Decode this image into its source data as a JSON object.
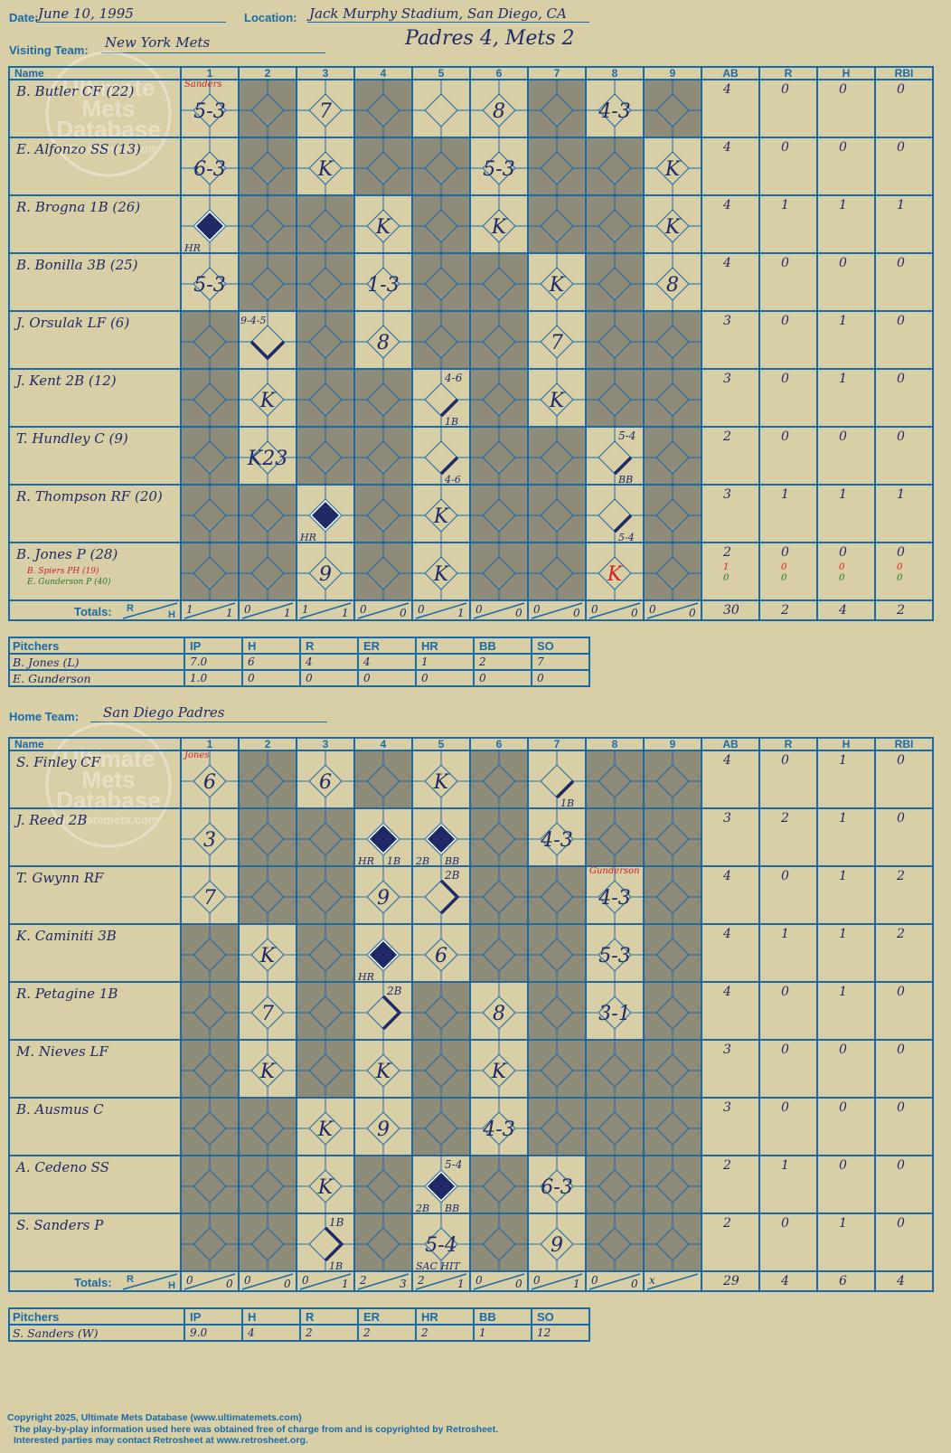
{
  "header": {
    "date_label": "Date:",
    "date": "June 10, 1995",
    "location_label": "Location:",
    "location": "Jack Murphy Stadium, San Diego, CA",
    "result": "Padres 4, Mets 2"
  },
  "labels": {
    "visiting_team": "Visiting Team:",
    "home_team": "Home Team:",
    "name": "Name",
    "totals": "Totals:",
    "r": "R",
    "h": "H",
    "pitchers": "Pitchers"
  },
  "innings": [
    "1",
    "2",
    "3",
    "4",
    "5",
    "6",
    "7",
    "8",
    "9"
  ],
  "stat_cols": [
    "AB",
    "R",
    "H",
    "RBI"
  ],
  "pitch_cols": [
    "IP",
    "H",
    "R",
    "ER",
    "HR",
    "BB",
    "SO"
  ],
  "watermark": {
    "line1": "Ultimate",
    "line2": "Mets",
    "line3": "Database",
    "line4": "ultimatemets.com"
  },
  "colors": {
    "background": "#d9cfa6",
    "grid": "#1a6aa8",
    "shade": "#8e8b79",
    "ink": "#1f2a66",
    "red": "#cc2222",
    "green": "#2a7a2a"
  },
  "visitors": {
    "team": "New York Mets",
    "players": [
      {
        "name": "B. Butler CF (22)",
        "stats": [
          "4",
          "0",
          "0",
          "0"
        ]
      },
      {
        "name": "E. Alfonzo SS (13)",
        "stats": [
          "4",
          "0",
          "0",
          "0"
        ]
      },
      {
        "name": "R. Brogna 1B (26)",
        "stats": [
          "4",
          "1",
          "1",
          "1"
        ]
      },
      {
        "name": "B. Bonilla 3B (25)",
        "stats": [
          "4",
          "0",
          "0",
          "0"
        ]
      },
      {
        "name": "J. Orsulak LF (6)",
        "stats": [
          "3",
          "0",
          "1",
          "0"
        ]
      },
      {
        "name": "J. Kent 2B (12)",
        "stats": [
          "3",
          "0",
          "1",
          "0"
        ]
      },
      {
        "name": "T. Hundley C (9)",
        "stats": [
          "2",
          "0",
          "0",
          "0"
        ]
      },
      {
        "name": "R. Thompson RF (20)",
        "stats": [
          "3",
          "1",
          "1",
          "1"
        ]
      },
      {
        "name": "B. Jones P (28)",
        "stats": [
          "2",
          "0",
          "0",
          "0"
        ],
        "subs": [
          {
            "name": "B. Spiers PH (19)",
            "color": "red",
            "stats": [
              "1",
              "0",
              "0",
              "0"
            ]
          },
          {
            "name": "E. Gunderson P (40)",
            "color": "green",
            "stats": [
              "0",
              "0",
              "0",
              "0"
            ]
          }
        ]
      }
    ],
    "shade": [
      [
        0,
        1,
        0,
        1,
        0,
        0,
        1,
        0,
        1
      ],
      [
        0,
        1,
        0,
        1,
        1,
        0,
        1,
        1,
        0
      ],
      [
        0,
        1,
        1,
        0,
        1,
        0,
        1,
        1,
        0
      ],
      [
        0,
        1,
        1,
        0,
        1,
        1,
        0,
        1,
        0
      ],
      [
        1,
        0,
        1,
        0,
        1,
        1,
        0,
        1,
        1
      ],
      [
        1,
        0,
        1,
        1,
        0,
        1,
        0,
        1,
        1
      ],
      [
        1,
        0,
        1,
        1,
        0,
        1,
        1,
        0,
        1
      ],
      [
        1,
        1,
        0,
        1,
        0,
        1,
        1,
        0,
        1
      ],
      [
        1,
        1,
        0,
        1,
        0,
        1,
        1,
        0,
        1
      ]
    ],
    "plays": [
      {
        "r": 0,
        "i": 0,
        "t": "5-3"
      },
      {
        "r": 0,
        "i": 2,
        "t": "7"
      },
      {
        "r": 0,
        "i": 5,
        "t": "8"
      },
      {
        "r": 0,
        "i": 7,
        "t": "4-3"
      },
      {
        "r": 1,
        "i": 0,
        "t": "6-3"
      },
      {
        "r": 1,
        "i": 2,
        "t": "K"
      },
      {
        "r": 1,
        "i": 5,
        "t": "5-3"
      },
      {
        "r": 1,
        "i": 8,
        "t": "K"
      },
      {
        "r": 2,
        "i": 0,
        "t": "",
        "fill": 1,
        "bl": "HR"
      },
      {
        "r": 2,
        "i": 3,
        "t": "K"
      },
      {
        "r": 2,
        "i": 5,
        "t": "K"
      },
      {
        "r": 2,
        "i": 8,
        "t": "K"
      },
      {
        "r": 3,
        "i": 0,
        "t": "5-3"
      },
      {
        "r": 3,
        "i": 3,
        "t": "1-3"
      },
      {
        "r": 3,
        "i": 6,
        "t": "K"
      },
      {
        "r": 3,
        "i": 8,
        "t": "8"
      },
      {
        "r": 4,
        "i": 1,
        "t": "",
        "tl": "9-4-5",
        "path": "run2"
      },
      {
        "r": 4,
        "i": 3,
        "t": "8"
      },
      {
        "r": 4,
        "i": 6,
        "t": "7"
      },
      {
        "r": 5,
        "i": 1,
        "t": "K"
      },
      {
        "r": 5,
        "i": 4,
        "t": "",
        "tr": "4-6",
        "br": "1B",
        "path": "to1"
      },
      {
        "r": 5,
        "i": 6,
        "t": "K"
      },
      {
        "r": 6,
        "i": 1,
        "t": "K23"
      },
      {
        "r": 6,
        "i": 4,
        "t": "",
        "br": "4-6",
        "path": "to1"
      },
      {
        "r": 6,
        "i": 7,
        "t": "",
        "tr": "5-4",
        "br": "BB",
        "path": "to1"
      },
      {
        "r": 7,
        "i": 2,
        "t": "",
        "fill": 1,
        "bl": "HR"
      },
      {
        "r": 7,
        "i": 4,
        "t": "K"
      },
      {
        "r": 7,
        "i": 7,
        "t": "",
        "br": "5-4",
        "path": "to1"
      },
      {
        "r": 8,
        "i": 2,
        "t": "9"
      },
      {
        "r": 8,
        "i": 4,
        "t": "K"
      },
      {
        "r": 8,
        "i": 7,
        "t": "K",
        "red": 1
      }
    ],
    "notes": [
      {
        "r": 0,
        "i": 0,
        "t": "Sanders"
      }
    ],
    "totals": {
      "innings": [
        [
          "1",
          "1"
        ],
        [
          "0",
          "1"
        ],
        [
          "1",
          "1"
        ],
        [
          "0",
          "0"
        ],
        [
          "0",
          "1"
        ],
        [
          "0",
          "0"
        ],
        [
          "0",
          "0"
        ],
        [
          "0",
          "0"
        ],
        [
          "0",
          "0"
        ]
      ],
      "stats": [
        "30",
        "2",
        "4",
        "2"
      ]
    },
    "pitchers": [
      {
        "name": "B. Jones (L)",
        "stats": [
          "7.0",
          "6",
          "4",
          "4",
          "1",
          "2",
          "7"
        ]
      },
      {
        "name": "E. Gunderson",
        "stats": [
          "1.0",
          "0",
          "0",
          "0",
          "0",
          "0",
          "0"
        ]
      }
    ]
  },
  "home": {
    "team": "San Diego Padres",
    "players": [
      {
        "name": "S. Finley CF",
        "stats": [
          "4",
          "0",
          "1",
          "0"
        ]
      },
      {
        "name": "J. Reed 2B",
        "stats": [
          "3",
          "2",
          "1",
          "0"
        ]
      },
      {
        "name": "T. Gwynn RF",
        "stats": [
          "4",
          "0",
          "1",
          "2"
        ]
      },
      {
        "name": "K. Caminiti 3B",
        "stats": [
          "4",
          "1",
          "1",
          "2"
        ]
      },
      {
        "name": "R. Petagine 1B",
        "stats": [
          "4",
          "0",
          "1",
          "0"
        ]
      },
      {
        "name": "M. Nieves LF",
        "stats": [
          "3",
          "0",
          "0",
          "0"
        ]
      },
      {
        "name": "B. Ausmus C",
        "stats": [
          "3",
          "0",
          "0",
          "0"
        ]
      },
      {
        "name": "A. Cedeno SS",
        "stats": [
          "2",
          "1",
          "0",
          "0"
        ]
      },
      {
        "name": "S. Sanders P",
        "stats": [
          "2",
          "0",
          "1",
          "0"
        ]
      }
    ],
    "shade": [
      [
        0,
        1,
        0,
        1,
        0,
        1,
        0,
        1,
        1
      ],
      [
        0,
        1,
        1,
        0,
        0,
        1,
        0,
        1,
        1
      ],
      [
        0,
        1,
        1,
        0,
        0,
        1,
        1,
        0,
        1
      ],
      [
        1,
        0,
        1,
        0,
        0,
        1,
        1,
        0,
        1
      ],
      [
        1,
        0,
        1,
        0,
        1,
        0,
        1,
        0,
        1
      ],
      [
        1,
        0,
        1,
        0,
        1,
        0,
        1,
        1,
        1
      ],
      [
        1,
        1,
        0,
        0,
        1,
        0,
        1,
        1,
        1
      ],
      [
        1,
        1,
        0,
        1,
        0,
        1,
        0,
        1,
        1
      ],
      [
        1,
        1,
        0,
        1,
        0,
        1,
        0,
        1,
        1
      ]
    ],
    "plays": [
      {
        "r": 0,
        "i": 0,
        "t": "6"
      },
      {
        "r": 0,
        "i": 2,
        "t": "6"
      },
      {
        "r": 0,
        "i": 4,
        "t": "K"
      },
      {
        "r": 0,
        "i": 6,
        "t": "",
        "br": "1B",
        "path": "to1"
      },
      {
        "r": 1,
        "i": 0,
        "t": "3"
      },
      {
        "r": 1,
        "i": 3,
        "t": "",
        "fill": 1,
        "bl": "HR",
        "br": "1B"
      },
      {
        "r": 1,
        "i": 4,
        "t": "",
        "fill": 1,
        "bl": "2B",
        "br": "BB"
      },
      {
        "r": 1,
        "i": 6,
        "t": "4-3"
      },
      {
        "r": 2,
        "i": 0,
        "t": "7"
      },
      {
        "r": 2,
        "i": 3,
        "t": "9"
      },
      {
        "r": 2,
        "i": 4,
        "t": "",
        "tr": "2B",
        "path": "to2"
      },
      {
        "r": 2,
        "i": 7,
        "t": "4-3"
      },
      {
        "r": 3,
        "i": 1,
        "t": "K"
      },
      {
        "r": 3,
        "i": 3,
        "t": "",
        "fill": 1,
        "bl": "HR"
      },
      {
        "r": 3,
        "i": 4,
        "t": "6"
      },
      {
        "r": 3,
        "i": 7,
        "t": "5-3"
      },
      {
        "r": 4,
        "i": 1,
        "t": "7"
      },
      {
        "r": 4,
        "i": 3,
        "t": "",
        "tr": "2B",
        "path": "to2"
      },
      {
        "r": 4,
        "i": 5,
        "t": "8"
      },
      {
        "r": 4,
        "i": 7,
        "t": "3-1"
      },
      {
        "r": 5,
        "i": 1,
        "t": "K"
      },
      {
        "r": 5,
        "i": 3,
        "t": "K"
      },
      {
        "r": 5,
        "i": 5,
        "t": "K"
      },
      {
        "r": 6,
        "i": 2,
        "t": "K"
      },
      {
        "r": 6,
        "i": 3,
        "t": "9"
      },
      {
        "r": 6,
        "i": 5,
        "t": "4-3"
      },
      {
        "r": 7,
        "i": 2,
        "t": "K"
      },
      {
        "r": 7,
        "i": 4,
        "t": "",
        "fill": 1,
        "tr": "5-4",
        "bl": "2B",
        "br": "BB"
      },
      {
        "r": 7,
        "i": 6,
        "t": "6-3"
      },
      {
        "r": 8,
        "i": 2,
        "t": "",
        "tr": "1B",
        "br": "1B",
        "path": "to2"
      },
      {
        "r": 8,
        "i": 4,
        "t": "5-4",
        "bl": "SAC HIT"
      },
      {
        "r": 8,
        "i": 6,
        "t": "9"
      }
    ],
    "notes": [
      {
        "r": 0,
        "i": 0,
        "t": "Jones"
      },
      {
        "r": 2,
        "i": 7,
        "t": "Gunderson"
      }
    ],
    "totals": {
      "innings": [
        [
          "0",
          "0"
        ],
        [
          "0",
          "0"
        ],
        [
          "0",
          "1"
        ],
        [
          "2",
          "3"
        ],
        [
          "2",
          "1"
        ],
        [
          "0",
          "0"
        ],
        [
          "0",
          "1"
        ],
        [
          "0",
          "0"
        ],
        [
          "x",
          ""
        ]
      ],
      "stats": [
        "29",
        "4",
        "6",
        "4"
      ]
    },
    "pitchers": [
      {
        "name": "S. Sanders (W)",
        "stats": [
          "9.0",
          "4",
          "2",
          "2",
          "2",
          "1",
          "12"
        ]
      }
    ]
  },
  "footer": {
    "line1": "Copyright 2025, Ultimate Mets Database (www.ultimatemets.com)",
    "line2": "The play-by-play information used here was obtained free of charge from and is copyrighted by Retrosheet.",
    "line3": "Interested parties may contact Retrosheet at www.retrosheet.org."
  }
}
